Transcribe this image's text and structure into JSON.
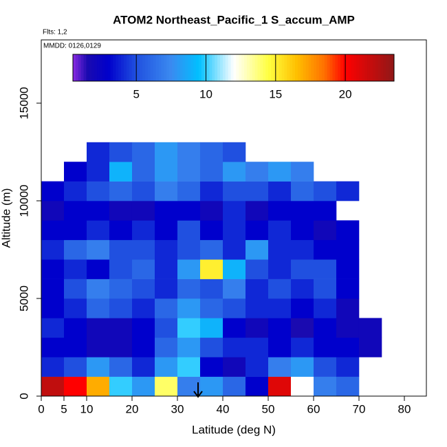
{
  "chart_data": {
    "type": "heatmap",
    "title": "ATOM2 Northeast_Pacific_1 S_accum_AMP",
    "subtitle": "Flts: 1,2",
    "annotation": "MMDD: 0126,0129",
    "x_label": "Latitude (deg N)",
    "y_label": "Altitude (m)",
    "xlim": [
      0,
      84.85
    ],
    "ylim": [
      0,
      18240
    ],
    "xticks": [
      0,
      5,
      10,
      20,
      30,
      40,
      50,
      60,
      70,
      80
    ],
    "yticks": [
      0,
      5000,
      10000,
      15000
    ],
    "x_edges": [
      0,
      5,
      10,
      15,
      20,
      25,
      30,
      35,
      40,
      45,
      50,
      55,
      60,
      65,
      70,
      75
    ],
    "y_edges": [
      0,
      1000,
      2000,
      3000,
      4000,
      5000,
      6000,
      7000,
      8000,
      9000,
      10000,
      11000,
      12000,
      13000
    ],
    "z": [
      [
        22,
        20,
        17,
        10,
        8,
        14,
        7,
        8,
        6,
        3,
        21,
        12,
        7,
        6,
        null
      ],
      [
        4,
        5,
        8,
        6,
        4,
        8,
        10,
        3,
        2,
        4,
        7,
        8,
        5,
        4,
        null
      ],
      [
        3,
        3,
        2,
        2,
        3,
        6,
        8,
        5,
        4,
        4,
        3,
        4,
        3,
        3,
        2
      ],
      [
        4,
        3,
        2,
        2,
        3,
        5,
        10,
        9,
        3,
        2,
        3,
        1.5,
        3,
        2,
        2
      ],
      [
        3,
        4,
        6,
        5,
        4,
        6,
        8,
        6,
        5,
        4,
        4,
        3,
        4,
        2,
        null
      ],
      [
        3,
        5,
        7,
        6,
        5,
        4,
        6,
        5,
        7,
        4,
        5,
        4,
        5,
        3,
        null
      ],
      [
        3,
        4,
        3,
        5,
        6,
        4,
        8,
        15,
        9,
        5,
        4,
        5,
        5,
        3,
        null
      ],
      [
        4,
        6,
        7,
        5,
        5,
        4,
        5,
        6,
        4,
        8,
        4,
        4,
        3,
        3,
        null
      ],
      [
        3,
        3,
        4,
        3,
        4,
        3,
        5,
        3,
        4,
        3,
        4,
        3,
        2,
        3,
        null
      ],
      [
        2,
        3,
        3,
        2,
        2,
        3,
        3,
        2,
        4,
        2,
        3,
        3,
        3,
        null,
        null
      ],
      [
        3,
        4,
        5,
        6,
        5,
        7,
        6,
        4,
        5,
        5,
        4,
        6,
        5,
        4,
        null
      ],
      [
        null,
        3,
        4,
        9,
        6,
        8,
        7,
        6,
        8,
        7,
        8,
        7,
        null,
        null,
        null
      ],
      [
        null,
        null,
        4,
        5,
        6,
        8,
        7,
        6,
        5,
        null,
        null,
        null,
        null,
        null,
        null
      ]
    ],
    "colorbar": {
      "lim": [
        0.45,
        23.5
      ],
      "ticks": [
        5,
        10,
        15,
        20
      ]
    },
    "colorscale": [
      [
        0.45,
        "#8a2be2"
      ],
      [
        1.5,
        "#1a0ab0"
      ],
      [
        3,
        "#0000cc"
      ],
      [
        5,
        "#2050e0"
      ],
      [
        7.5,
        "#3a8af0"
      ],
      [
        9.5,
        "#00c0ff"
      ],
      [
        12,
        "#ffffff"
      ],
      [
        14.5,
        "#ffff40"
      ],
      [
        16.5,
        "#ffc000"
      ],
      [
        18.5,
        "#ff7000"
      ],
      [
        20,
        "#ff0000"
      ],
      [
        23.5,
        "#901818"
      ]
    ]
  }
}
